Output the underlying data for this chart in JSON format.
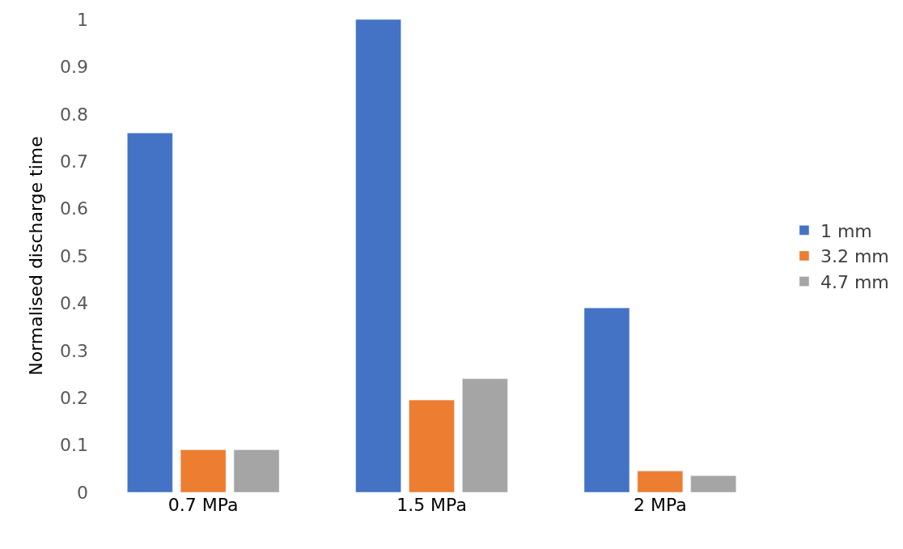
{
  "chart_data": {
    "type": "bar",
    "ylabel": "Normalised discharge time",
    "categories": [
      "0.7 MPa",
      "1.5 MPa",
      "2 MPa"
    ],
    "series": [
      {
        "name": "1 mm",
        "color": "#4472c4",
        "values": [
          0.76,
          1.0,
          0.39
        ]
      },
      {
        "name": "3.2 mm",
        "color": "#ed7d31",
        "values": [
          0.09,
          0.195,
          0.045
        ]
      },
      {
        "name": "4.7 mm",
        "color": "#a5a5a5",
        "values": [
          0.09,
          0.24,
          0.035
        ]
      }
    ],
    "ylim": [
      0,
      1
    ],
    "yticks": [
      0,
      0.1,
      0.2,
      0.3,
      0.4,
      0.5,
      0.6,
      0.7,
      0.8,
      0.9,
      1
    ],
    "grid": false,
    "legend": "right"
  }
}
